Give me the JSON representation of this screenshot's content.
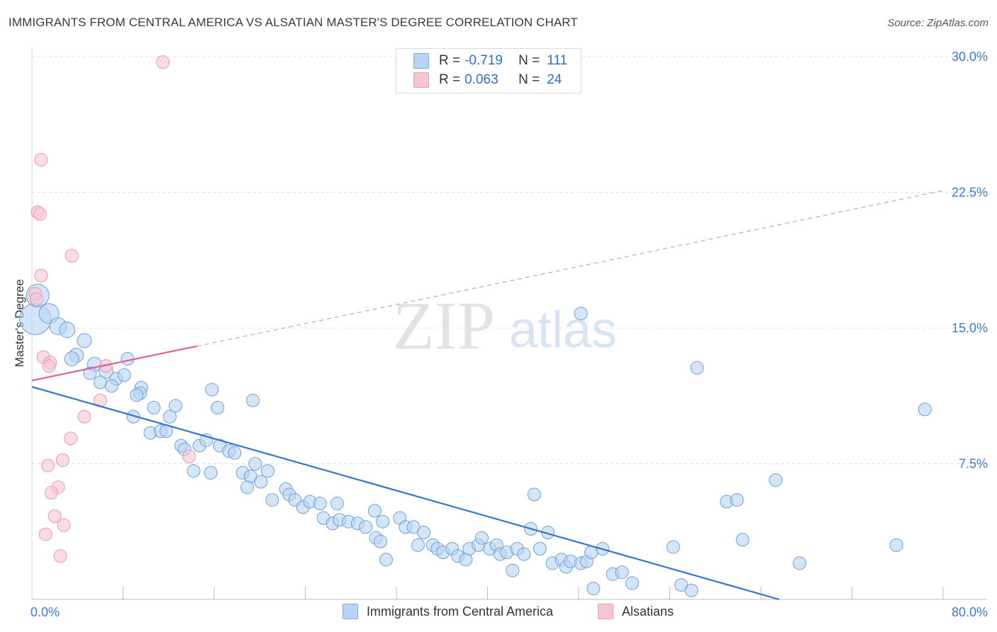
{
  "header": {
    "title": "IMMIGRANTS FROM CENTRAL AMERICA VS ALSATIAN MASTER'S DEGREE CORRELATION CHART",
    "source": "Source: ZipAtlas.com"
  },
  "watermark": {
    "zip": "ZIP",
    "atlas": "atlas"
  },
  "legend": {
    "rows": [
      {
        "r_label": "R =",
        "r_value": "-0.719",
        "n_label": "N =",
        "n_value": "111",
        "color": "#b8d3f3",
        "border": "#7fa9dd"
      },
      {
        "r_label": "R =",
        "r_value": "0.063",
        "n_label": "N =",
        "n_value": "24",
        "color": "#f7c4d3",
        "border": "#e899b3"
      }
    ]
  },
  "colors": {
    "blue_fill": "#b8d3f3",
    "blue_stroke": "#6f9fd8",
    "blue_line": "#3274cf",
    "pink_fill": "#f7c4d3",
    "pink_stroke": "#e898b2",
    "pink_line": "#e0608f",
    "grid": "#dcdcdc",
    "axis_text": "#3a7bd5"
  },
  "chart_data": {
    "type": "scatter",
    "title": "IMMIGRANTS FROM CENTRAL AMERICA VS ALSATIAN MASTER'S DEGREE CORRELATION CHART",
    "xlabel": "",
    "ylabel": "Master's Degree",
    "xlim": [
      0,
      80
    ],
    "ylim": [
      0,
      30
    ],
    "x_tick_labels": [
      "0.0%",
      "80.0%"
    ],
    "y_tick_values": [
      7.5,
      15.0,
      22.5,
      30.0
    ],
    "y_tick_labels": [
      "7.5%",
      "15.0%",
      "22.5%",
      "30.0%"
    ],
    "grid": "horizontal dashed",
    "legend_placement": "top-center and bottom",
    "series": [
      {
        "name": "Immigrants from Central America",
        "color": "#b8d3f3",
        "points": [
          [
            0.3,
            15.5,
            22
          ],
          [
            0.5,
            16.8,
            16
          ],
          [
            1.5,
            15.8,
            14
          ],
          [
            2.3,
            15.1,
            12
          ],
          [
            3.1,
            14.9,
            11
          ],
          [
            4.6,
            14.3,
            10
          ],
          [
            3.9,
            13.5,
            10
          ],
          [
            3.5,
            13.3,
            10
          ],
          [
            5.5,
            13.0,
            10
          ],
          [
            6.5,
            12.6,
            10
          ],
          [
            5.1,
            12.5,
            9
          ],
          [
            8.4,
            13.3,
            9
          ],
          [
            6.0,
            12.0,
            9
          ],
          [
            7.4,
            12.2,
            9
          ],
          [
            8.1,
            12.4,
            9
          ],
          [
            7.0,
            11.8,
            9
          ],
          [
            9.6,
            11.7,
            9
          ],
          [
            9.5,
            11.4,
            9
          ],
          [
            9.2,
            11.3,
            9
          ],
          [
            10.7,
            10.6,
            9
          ],
          [
            12.6,
            10.7,
            9
          ],
          [
            8.9,
            10.1,
            9
          ],
          [
            12.1,
            10.1,
            9
          ],
          [
            10.4,
            9.2,
            9
          ],
          [
            11.3,
            9.3,
            9
          ],
          [
            11.8,
            9.3,
            9
          ],
          [
            13.1,
            8.5,
            9
          ],
          [
            13.4,
            8.3,
            9
          ],
          [
            14.7,
            8.5,
            9
          ],
          [
            15.3,
            8.8,
            9
          ],
          [
            16.5,
            8.5,
            9
          ],
          [
            17.3,
            8.2,
            9
          ],
          [
            17.8,
            8.1,
            9
          ],
          [
            15.8,
            11.6,
            9
          ],
          [
            16.3,
            10.6,
            9
          ],
          [
            19.4,
            11.0,
            9
          ],
          [
            14.2,
            7.1,
            9
          ],
          [
            15.7,
            7.0,
            9
          ],
          [
            18.5,
            7.0,
            9
          ],
          [
            19.6,
            7.5,
            9
          ],
          [
            19.2,
            6.8,
            9
          ],
          [
            20.7,
            7.1,
            9
          ],
          [
            18.9,
            6.2,
            9
          ],
          [
            20.1,
            6.5,
            9
          ],
          [
            21.1,
            5.5,
            9
          ],
          [
            22.3,
            6.1,
            9
          ],
          [
            22.6,
            5.8,
            9
          ],
          [
            23.1,
            5.5,
            9
          ],
          [
            23.8,
            5.1,
            9
          ],
          [
            24.4,
            5.4,
            9
          ],
          [
            25.3,
            5.3,
            9
          ],
          [
            25.6,
            4.5,
            9
          ],
          [
            26.4,
            4.2,
            9
          ],
          [
            26.8,
            5.3,
            9
          ],
          [
            27.0,
            4.4,
            9
          ],
          [
            27.8,
            4.3,
            9
          ],
          [
            28.6,
            4.2,
            9
          ],
          [
            29.3,
            4.0,
            9
          ],
          [
            30.1,
            4.9,
            9
          ],
          [
            30.8,
            4.3,
            9
          ],
          [
            30.2,
            3.4,
            9
          ],
          [
            30.6,
            3.2,
            9
          ],
          [
            31.1,
            2.2,
            9
          ],
          [
            32.3,
            4.5,
            9
          ],
          [
            32.8,
            4.0,
            9
          ],
          [
            33.5,
            4.0,
            9
          ],
          [
            33.9,
            3.0,
            9
          ],
          [
            34.4,
            3.7,
            9
          ],
          [
            35.2,
            3.0,
            9
          ],
          [
            35.6,
            2.8,
            9
          ],
          [
            36.1,
            2.6,
            9
          ],
          [
            36.9,
            2.8,
            9
          ],
          [
            37.4,
            2.4,
            9
          ],
          [
            38.1,
            2.2,
            9
          ],
          [
            38.4,
            2.8,
            9
          ],
          [
            39.2,
            3.0,
            9
          ],
          [
            39.5,
            3.4,
            9
          ],
          [
            40.2,
            2.8,
            9
          ],
          [
            40.8,
            3.0,
            9
          ],
          [
            41.1,
            2.5,
            9
          ],
          [
            41.7,
            2.6,
            9
          ],
          [
            42.2,
            1.6,
            9
          ],
          [
            42.6,
            2.8,
            9
          ],
          [
            43.2,
            2.5,
            9
          ],
          [
            43.8,
            3.9,
            9
          ],
          [
            44.1,
            5.8,
            9
          ],
          [
            44.6,
            2.8,
            9
          ],
          [
            45.3,
            3.7,
            9
          ],
          [
            45.7,
            2.0,
            9
          ],
          [
            46.5,
            2.2,
            9
          ],
          [
            46.9,
            1.8,
            9
          ],
          [
            47.3,
            2.1,
            9
          ],
          [
            48.2,
            2.0,
            9
          ],
          [
            48.7,
            2.1,
            9
          ],
          [
            49.1,
            2.6,
            9
          ],
          [
            48.2,
            15.8,
            9
          ],
          [
            49.3,
            0.6,
            9
          ],
          [
            50.1,
            2.8,
            9
          ],
          [
            51.0,
            1.4,
            9
          ],
          [
            51.8,
            1.5,
            9
          ],
          [
            52.7,
            0.9,
            9
          ],
          [
            56.3,
            2.9,
            9
          ],
          [
            57.0,
            0.8,
            9
          ],
          [
            57.9,
            0.5,
            9
          ],
          [
            58.4,
            12.8,
            9
          ],
          [
            61.0,
            5.4,
            9
          ],
          [
            61.9,
            5.5,
            9
          ],
          [
            62.4,
            3.3,
            9
          ],
          [
            65.3,
            6.6,
            9
          ],
          [
            67.4,
            2.0,
            9
          ],
          [
            75.9,
            3.0,
            9
          ],
          [
            78.4,
            10.5,
            9
          ]
        ],
        "trend": {
          "x": [
            0,
            65.6
          ],
          "y": [
            11.75,
            0
          ],
          "style": "solid"
        }
      },
      {
        "name": "Alsatians",
        "color": "#f7c4d3",
        "points": [
          [
            11.5,
            29.7,
            9
          ],
          [
            0.8,
            24.3,
            9
          ],
          [
            0.5,
            21.4,
            9
          ],
          [
            0.7,
            21.3,
            9
          ],
          [
            3.5,
            19.0,
            9
          ],
          [
            0.8,
            17.9,
            9
          ],
          [
            0.3,
            16.9,
            9
          ],
          [
            0.4,
            16.6,
            9
          ],
          [
            1.0,
            13.4,
            9
          ],
          [
            1.6,
            13.1,
            9
          ],
          [
            1.5,
            12.9,
            9
          ],
          [
            6.5,
            12.9,
            9
          ],
          [
            6.0,
            11.0,
            9
          ],
          [
            4.6,
            10.1,
            9
          ],
          [
            3.4,
            8.9,
            9
          ],
          [
            13.8,
            7.9,
            9
          ],
          [
            2.7,
            7.7,
            9
          ],
          [
            1.4,
            7.4,
            9
          ],
          [
            2.3,
            6.2,
            9
          ],
          [
            1.7,
            5.9,
            9
          ],
          [
            2.0,
            4.6,
            9
          ],
          [
            2.8,
            4.1,
            9
          ],
          [
            1.2,
            3.6,
            9
          ],
          [
            2.5,
            2.4,
            9
          ]
        ],
        "trend": {
          "x": [
            0,
            14.5
          ],
          "y": [
            12.1,
            14.0
          ],
          "style": "solid",
          "extension": {
            "x": [
              14.5,
              80
            ],
            "y": [
              14.0,
              22.6
            ],
            "style": "dashed"
          }
        }
      }
    ]
  },
  "bottom_legend": {
    "items": [
      {
        "label": "Immigrants from Central America",
        "color": "#b8d3f3",
        "border": "#7fa9dd"
      },
      {
        "label": "Alsatians",
        "color": "#f7c4d3",
        "border": "#e899b3"
      }
    ]
  }
}
